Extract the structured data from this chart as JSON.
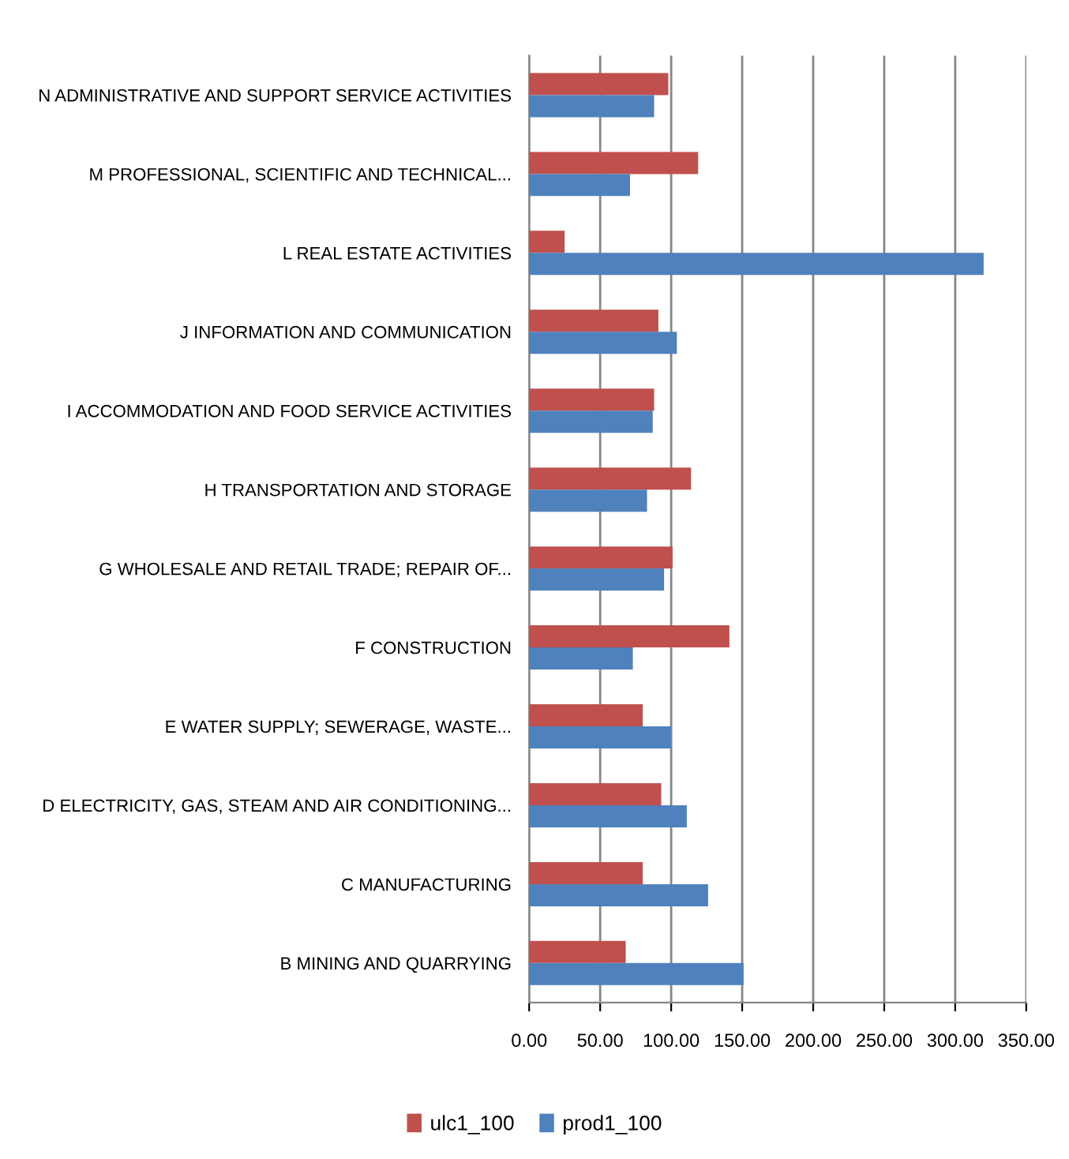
{
  "chart_data": {
    "type": "bar",
    "orientation": "horizontal",
    "categories": [
      "N ADMINISTRATIVE AND SUPPORT SERVICE ACTIVITIES",
      "M PROFESSIONAL, SCIENTIFIC AND TECHNICAL...",
      "L REAL ESTATE ACTIVITIES",
      "J INFORMATION AND COMMUNICATION",
      "I ACCOMMODATION AND FOOD SERVICE ACTIVITIES",
      "H TRANSPORTATION AND STORAGE",
      "G WHOLESALE AND RETAIL TRADE; REPAIR OF...",
      "F CONSTRUCTION",
      "E WATER SUPPLY; SEWERAGE, WASTE...",
      "D ELECTRICITY, GAS, STEAM AND AIR CONDITIONING...",
      "C MANUFACTURING",
      "B MINING AND QUARRYING"
    ],
    "series": [
      {
        "name": "ulc1_100",
        "color": "#c0504d",
        "values": [
          98,
          119,
          25,
          91,
          88,
          114,
          101,
          141,
          80,
          93,
          80,
          68
        ]
      },
      {
        "name": "prod1_100",
        "color": "#4f81bd",
        "values": [
          88,
          71,
          320,
          104,
          87,
          83,
          95,
          73,
          100,
          111,
          126,
          151
        ]
      }
    ],
    "xlim": [
      0,
      350
    ],
    "xticks": [
      {
        "value": 0,
        "label": "0.00"
      },
      {
        "value": 50,
        "label": "50.00"
      },
      {
        "value": 100,
        "label": "100.00"
      },
      {
        "value": 150,
        "label": "150.00"
      },
      {
        "value": 200,
        "label": "200.00"
      },
      {
        "value": 250,
        "label": "250.00"
      },
      {
        "value": 300,
        "label": "300.00"
      },
      {
        "value": 350,
        "label": "350.00"
      }
    ],
    "grid": "x",
    "legend": "bottom"
  }
}
